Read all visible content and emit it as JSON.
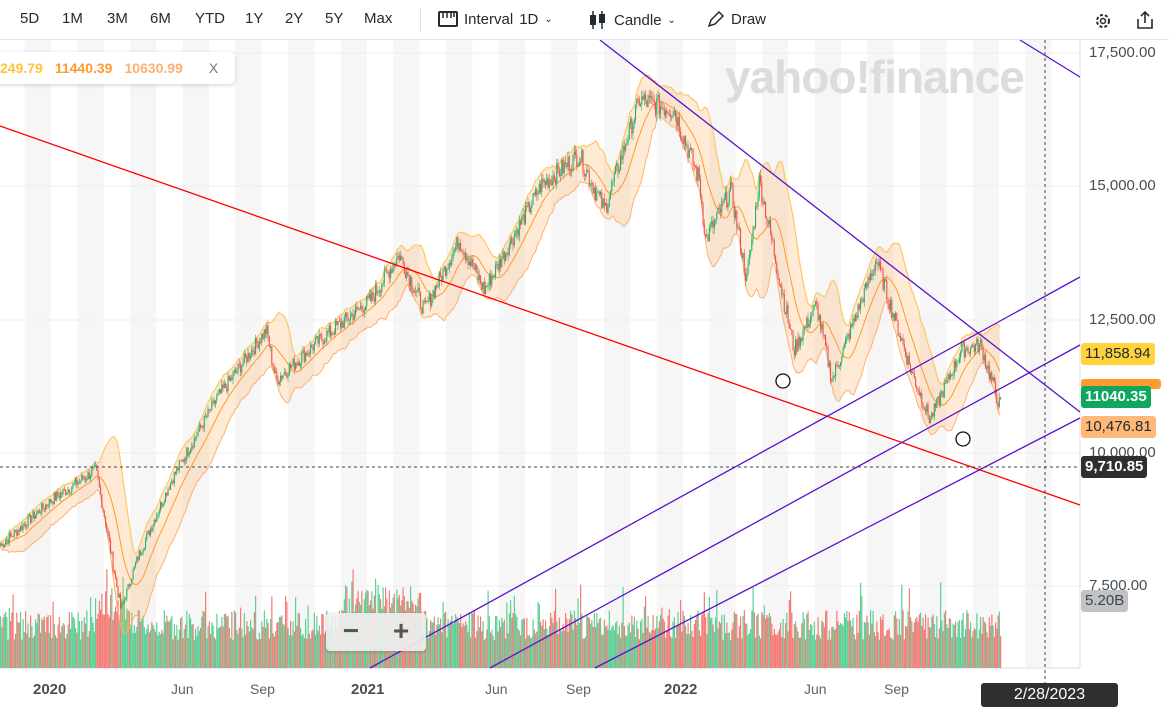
{
  "toolbar": {
    "ranges": [
      "5D",
      "1M",
      "3M",
      "6M",
      "YTD",
      "1Y",
      "2Y",
      "5Y",
      "Max"
    ],
    "interval_label": "Interval",
    "interval_value": "1D",
    "chart_type": "Candle",
    "draw_label": "Draw",
    "icons": [
      "interval-icon",
      "candle-icon",
      "pencil-icon",
      "gear-icon",
      "share-icon"
    ]
  },
  "legend": {
    "upper": "249.79",
    "middle": "11440.39",
    "lower": "10630.99",
    "close": "X"
  },
  "watermark": "yahoo!finance",
  "y_axis": [
    "17,500.00",
    "15,000.00",
    "12,500.00",
    "10,000.00",
    "7,500.00"
  ],
  "tags": {
    "bb_upper": "11,858.94",
    "price": "11040.35",
    "bb_lower": "10,476.81",
    "crosshair": "9,710.85",
    "volume": "5.20B"
  },
  "x_axis": [
    {
      "label": "2020",
      "bold": true
    },
    {
      "label": "Jun",
      "bold": false
    },
    {
      "label": "Sep",
      "bold": false
    },
    {
      "label": "2021",
      "bold": true
    },
    {
      "label": "Jun",
      "bold": false
    },
    {
      "label": "Sep",
      "bold": false
    },
    {
      "label": "2022",
      "bold": true
    },
    {
      "label": "Jun",
      "bold": false
    },
    {
      "label": "Sep",
      "bold": false
    }
  ],
  "crosshair_date": "2/28/2023",
  "zoom": {
    "minus": "−",
    "plus": "+"
  },
  "colors": {
    "up": "#1fb36c",
    "down": "#f0514a",
    "band": "#ffc75f",
    "trend_red": "#ff0000",
    "trend_purple": "#5a10d0"
  },
  "chart_data": {
    "type": "candlestick",
    "y_range": [
      6000,
      18000
    ],
    "path": [
      [
        2019.84,
        8275
      ],
      [
        2020.0,
        9119
      ],
      [
        2020.14,
        9681
      ],
      [
        2020.17,
        8744
      ],
      [
        2020.22,
        7056
      ],
      [
        2020.27,
        7994
      ],
      [
        2020.38,
        9494
      ],
      [
        2020.52,
        10994
      ],
      [
        2020.68,
        12306
      ],
      [
        2020.71,
        11369
      ],
      [
        2020.85,
        12119
      ],
      [
        2021.01,
        12869
      ],
      [
        2021.1,
        13713
      ],
      [
        2021.18,
        12681
      ],
      [
        2021.29,
        13994
      ],
      [
        2021.37,
        13056
      ],
      [
        2021.55,
        15025
      ],
      [
        2021.67,
        15588
      ],
      [
        2021.75,
        14556
      ],
      [
        2021.86,
        16619
      ],
      [
        2021.97,
        16431
      ],
      [
        2022.05,
        15119
      ],
      [
        2022.07,
        13994
      ],
      [
        2022.15,
        14931
      ],
      [
        2022.2,
        13244
      ],
      [
        2022.24,
        15119
      ],
      [
        2022.35,
        11931
      ],
      [
        2022.42,
        12775
      ],
      [
        2022.47,
        11369
      ],
      [
        2022.61,
        13619
      ],
      [
        2022.72,
        11556
      ],
      [
        2022.78,
        10619
      ],
      [
        2022.88,
        11931
      ],
      [
        2022.94,
        12025
      ],
      [
        2023.0,
        10900
      ]
    ]
  }
}
